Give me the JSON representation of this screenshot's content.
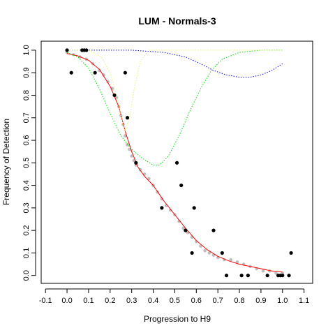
{
  "chart_data": {
    "type": "scatter",
    "title": "LUM - Normals-3",
    "xlabel": "Progression to H9",
    "ylabel": "Frequency of Detection",
    "xlim": [
      -0.12,
      1.14
    ],
    "ylim": [
      -0.035,
      1.04
    ],
    "xticks": [
      -0.1,
      0.0,
      0.1,
      0.2,
      0.3,
      0.4,
      0.5,
      0.6,
      0.7,
      0.8,
      0.9,
      1.0,
      1.1
    ],
    "xtick_labels": [
      "-0.1",
      "0.0",
      "0.1",
      "0.2",
      "0.3",
      "0.4",
      "0.5",
      "0.6",
      "0.7",
      "0.8",
      "0.9",
      "1.0",
      "1.1"
    ],
    "yticks": [
      0.0,
      0.1,
      0.2,
      0.3,
      0.4,
      0.5,
      0.6,
      0.7,
      0.8,
      0.9,
      1.0
    ],
    "ytick_labels": [
      "0.0",
      "0.1",
      "0.2",
      "0.3",
      "0.4",
      "0.5",
      "0.6",
      "0.7",
      "0.8",
      "0.9",
      "1.0"
    ],
    "grid": false,
    "series": [
      {
        "kind": "points",
        "color": "#000000",
        "points": [
          [
            0.0,
            1.0
          ],
          [
            0.02,
            0.9
          ],
          [
            0.07,
            1.0
          ],
          [
            0.08,
            1.0
          ],
          [
            0.09,
            1.0
          ],
          [
            0.13,
            0.9
          ],
          [
            0.22,
            0.8
          ],
          [
            0.27,
            0.9
          ],
          [
            0.28,
            0.7
          ],
          [
            0.32,
            0.5
          ],
          [
            0.44,
            0.3
          ],
          [
            0.51,
            0.5
          ],
          [
            0.53,
            0.4
          ],
          [
            0.55,
            0.2
          ],
          [
            0.58,
            0.1
          ],
          [
            0.59,
            0.3
          ],
          [
            0.68,
            0.2
          ],
          [
            0.72,
            0.1
          ],
          [
            0.74,
            0.0
          ],
          [
            0.81,
            0.0
          ],
          [
            0.84,
            0.0
          ],
          [
            0.93,
            0.0
          ],
          [
            0.98,
            0.0
          ],
          [
            0.99,
            0.0
          ],
          [
            1.0,
            0.0
          ],
          [
            1.03,
            0.0
          ],
          [
            1.04,
            0.1
          ]
        ]
      },
      {
        "kind": "points",
        "color": "#bebebe",
        "points": [
          [
            0.0,
            0.99
          ],
          [
            0.03,
            0.98
          ],
          [
            0.06,
            0.97
          ],
          [
            0.09,
            0.96
          ],
          [
            0.12,
            0.94
          ],
          [
            0.15,
            0.91
          ],
          [
            0.17,
            0.89
          ],
          [
            0.19,
            0.86
          ],
          [
            0.21,
            0.83
          ],
          [
            0.23,
            0.79
          ],
          [
            0.24,
            0.75
          ],
          [
            0.25,
            0.71
          ],
          [
            0.26,
            0.67
          ],
          [
            0.27,
            0.62
          ],
          [
            0.28,
            0.58
          ],
          [
            0.29,
            0.56
          ],
          [
            0.3,
            0.53
          ],
          [
            0.31,
            0.51
          ],
          [
            0.32,
            0.49
          ],
          [
            0.34,
            0.47
          ],
          [
            0.36,
            0.45
          ],
          [
            0.38,
            0.43
          ],
          [
            0.4,
            0.4
          ],
          [
            0.42,
            0.37
          ],
          [
            0.44,
            0.34
          ],
          [
            0.46,
            0.31
          ],
          [
            0.48,
            0.29
          ],
          [
            0.5,
            0.27
          ],
          [
            0.52,
            0.24
          ],
          [
            0.54,
            0.21
          ],
          [
            0.56,
            0.19
          ],
          [
            0.58,
            0.17
          ],
          [
            0.6,
            0.15
          ],
          [
            0.62,
            0.13
          ],
          [
            0.64,
            0.11
          ],
          [
            0.66,
            0.1
          ],
          [
            0.68,
            0.09
          ],
          [
            0.7,
            0.08
          ],
          [
            0.73,
            0.07
          ],
          [
            0.76,
            0.07
          ],
          [
            0.79,
            0.06
          ],
          [
            0.82,
            0.05
          ],
          [
            0.85,
            0.04
          ],
          [
            0.88,
            0.03
          ],
          [
            0.91,
            0.02
          ],
          [
            0.94,
            0.02
          ],
          [
            0.97,
            0.01
          ],
          [
            1.0,
            0.01
          ]
        ]
      },
      {
        "kind": "line",
        "color": "#ff0000",
        "dash": false,
        "points": [
          [
            0.0,
            0.985
          ],
          [
            0.05,
            0.975
          ],
          [
            0.1,
            0.955
          ],
          [
            0.15,
            0.915
          ],
          [
            0.2,
            0.84
          ],
          [
            0.24,
            0.75
          ],
          [
            0.27,
            0.64
          ],
          [
            0.3,
            0.55
          ],
          [
            0.33,
            0.48
          ],
          [
            0.36,
            0.44
          ],
          [
            0.4,
            0.4
          ],
          [
            0.45,
            0.33
          ],
          [
            0.5,
            0.27
          ],
          [
            0.55,
            0.21
          ],
          [
            0.6,
            0.155
          ],
          [
            0.65,
            0.115
          ],
          [
            0.7,
            0.085
          ],
          [
            0.75,
            0.065
          ],
          [
            0.8,
            0.05
          ],
          [
            0.85,
            0.04
          ],
          [
            0.9,
            0.03
          ],
          [
            0.95,
            0.02
          ],
          [
            1.0,
            0.015
          ]
        ]
      },
      {
        "kind": "line",
        "color": "#0000ff",
        "dash": true,
        "points": [
          [
            0.0,
            1.0
          ],
          [
            0.3,
            1.0
          ],
          [
            0.45,
            0.99
          ],
          [
            0.55,
            0.97
          ],
          [
            0.62,
            0.94
          ],
          [
            0.68,
            0.91
          ],
          [
            0.74,
            0.89
          ],
          [
            0.8,
            0.88
          ],
          [
            0.85,
            0.88
          ],
          [
            0.9,
            0.89
          ],
          [
            0.95,
            0.91
          ],
          [
            1.0,
            0.94
          ]
        ]
      },
      {
        "kind": "line",
        "color": "#00dd00",
        "dash": true,
        "points": [
          [
            0.0,
            0.99
          ],
          [
            0.05,
            0.97
          ],
          [
            0.1,
            0.92
          ],
          [
            0.15,
            0.83
          ],
          [
            0.2,
            0.72
          ],
          [
            0.25,
            0.62
          ],
          [
            0.3,
            0.56
          ],
          [
            0.35,
            0.52
          ],
          [
            0.4,
            0.49
          ],
          [
            0.43,
            0.49
          ],
          [
            0.47,
            0.53
          ],
          [
            0.52,
            0.62
          ],
          [
            0.57,
            0.73
          ],
          [
            0.62,
            0.83
          ],
          [
            0.67,
            0.91
          ],
          [
            0.72,
            0.96
          ],
          [
            0.8,
            0.99
          ],
          [
            0.9,
            1.0
          ],
          [
            1.0,
            1.0
          ]
        ]
      },
      {
        "kind": "line",
        "color": "#eeee66",
        "dash": true,
        "points": [
          [
            0.0,
            1.0
          ],
          [
            0.1,
            1.0
          ],
          [
            0.16,
            0.97
          ],
          [
            0.2,
            0.9
          ],
          [
            0.23,
            0.8
          ],
          [
            0.26,
            0.67
          ],
          [
            0.27,
            0.64
          ],
          [
            0.29,
            0.7
          ],
          [
            0.31,
            0.82
          ],
          [
            0.34,
            0.95
          ],
          [
            0.38,
            1.0
          ],
          [
            0.5,
            1.0
          ],
          [
            1.0,
            1.0
          ]
        ]
      }
    ]
  }
}
